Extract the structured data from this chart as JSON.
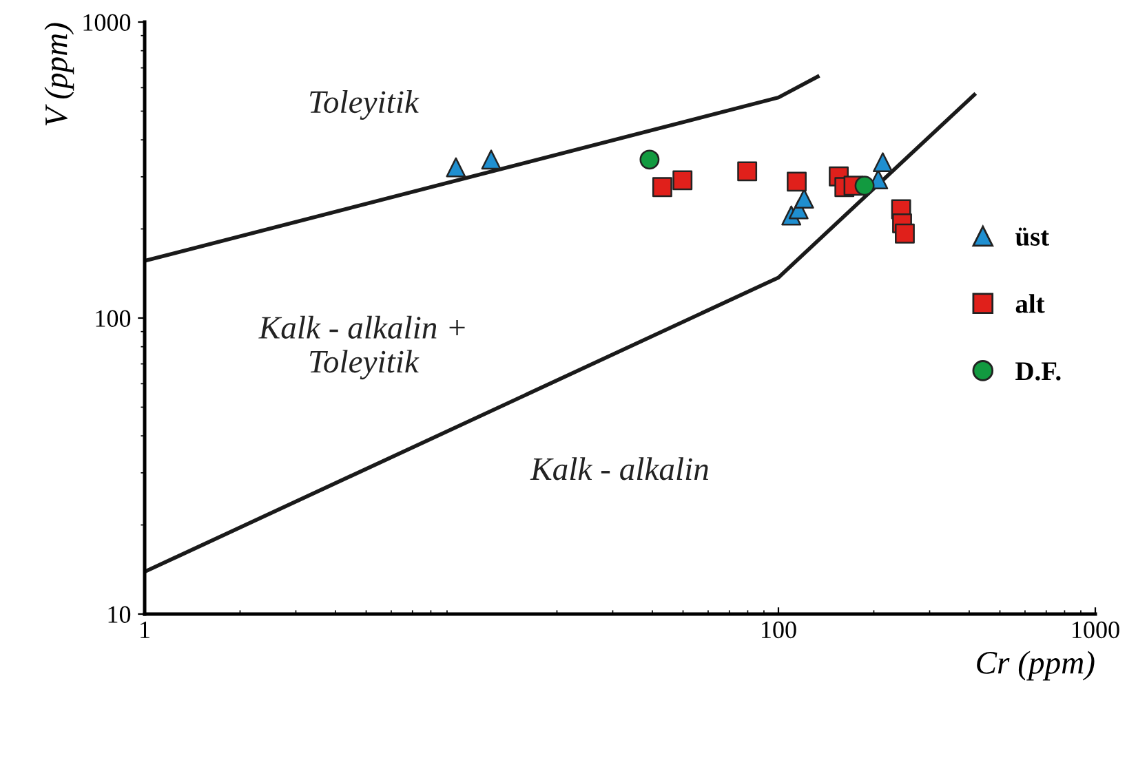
{
  "chart_data": {
    "type": "scatter",
    "xlabel": "Cr (ppm)",
    "ylabel": "V (ppm)",
    "log": "xy",
    "xlim": [
      1,
      1000
    ],
    "ylim": [
      10,
      1000
    ],
    "xticks": [
      1,
      100,
      1000
    ],
    "yticks": [
      10,
      100,
      1000
    ],
    "legend": "right",
    "grid": false,
    "series": [
      {
        "name": "üst",
        "marker": "triangle",
        "color": "#1f8fd0",
        "x": [
          9.6,
          12.4,
          109.8,
          115.8,
          120.5,
          206.5,
          213.5
        ],
        "values": [
          323,
          343,
          222,
          233,
          253,
          294,
          336
        ]
      },
      {
        "name": "alt",
        "marker": "square",
        "color": "#e0201b",
        "x": [
          43,
          49.8,
          79.7,
          114.2,
          155,
          161.5,
          172.6,
          243.9,
          245.6,
          250.5
        ],
        "values": [
          277,
          292,
          313,
          289,
          301,
          277,
          280,
          233,
          209,
          193
        ]
      },
      {
        "name": "D.F.",
        "marker": "circle",
        "color": "#129a40",
        "x": [
          39.2,
          187
        ],
        "values": [
          343,
          280
        ]
      },
      {
        "type": "line",
        "color": "#1a1a1a",
        "marker": "none",
        "line_style": "solid",
        "x": [
          1,
          100,
          133
        ],
        "values": [
          156,
          556,
          654
        ]
      },
      {
        "type": "line",
        "color": "#1a1a1a",
        "marker": "none",
        "line_style": "solid",
        "x": [
          1,
          100,
          415
        ],
        "values": [
          13.9,
          137,
          568
        ]
      }
    ],
    "annotations": [
      "Toleyitik",
      "Kalk - alkalin +\nToleyitik",
      "Kalk - alkalin"
    ]
  }
}
